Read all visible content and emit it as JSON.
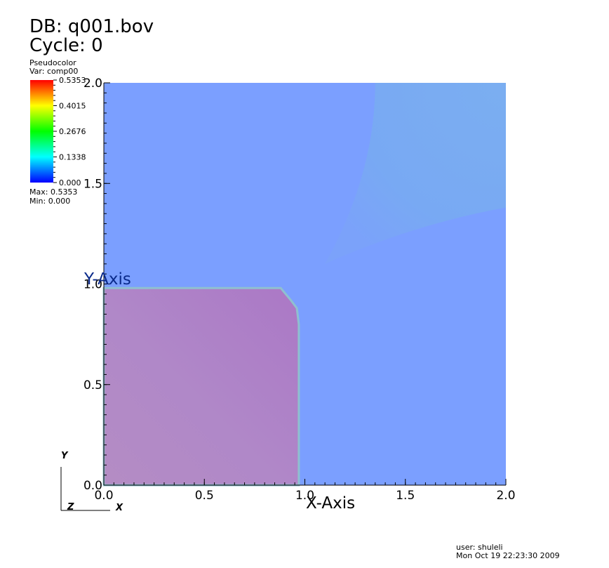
{
  "header": {
    "db_label": "DB: q001.bov",
    "cycle_label": "Cycle: 0"
  },
  "legend": {
    "plot_type": "Pseudocolor",
    "var_label": "Var: comp00",
    "tick_labels": [
      "0.5353",
      "0.4015",
      "0.2676",
      "0.1338",
      "0.000"
    ],
    "tick_values": [
      0.5353,
      0.4015,
      0.2676,
      0.1338,
      0.0
    ],
    "max_label": "Max: 0.5353",
    "min_label": "Min: 0.000",
    "colormap": [
      "#0000ff",
      "#00ffff",
      "#00ff00",
      "#ffff00",
      "#ff0000"
    ]
  },
  "chart_data": {
    "type": "heatmap",
    "xlabel": "X-Axis",
    "ylabel": "Y-Axis",
    "xlim": [
      0.0,
      2.0
    ],
    "ylim": [
      0.0,
      2.0
    ],
    "x_ticks": [
      0.0,
      0.5,
      1.0,
      1.5,
      2.0
    ],
    "y_ticks": [
      0.0,
      0.5,
      1.0,
      1.5,
      2.0
    ],
    "x_tick_labels": [
      "0.0",
      "0.5",
      "1.0",
      "1.5",
      "2.0"
    ],
    "y_tick_labels": [
      "0.0",
      "0.5",
      "1.0",
      "1.5",
      "2.0"
    ],
    "background_color": "#7b9fff",
    "regions": [
      {
        "shape": "rounded-square",
        "x": [
          0.0,
          0.97
        ],
        "y": [
          0.0,
          0.98
        ],
        "value_range": [
          0.48,
          0.535
        ],
        "color": "#b084c6"
      },
      {
        "shape": "wedge",
        "x": [
          1.1,
          2.0
        ],
        "y": [
          1.1,
          2.0
        ],
        "value_range": [
          0.14,
          0.17
        ],
        "color": "#78aef0"
      }
    ],
    "triad": {
      "y_label": "Y",
      "z_label": "Z",
      "x_label": "X"
    }
  },
  "footer": {
    "user_label": "user: shuleli",
    "date_label": "Mon Oct 19 22:23:30 2009"
  }
}
